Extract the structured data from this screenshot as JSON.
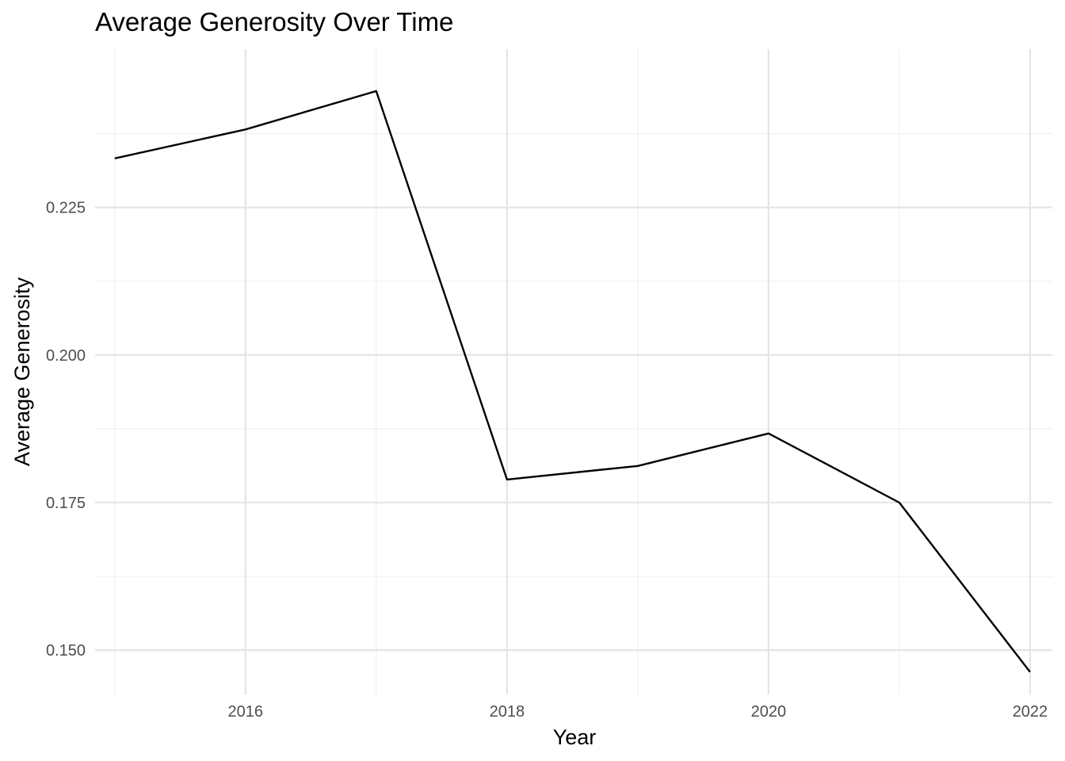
{
  "chart_data": {
    "type": "line",
    "title": "Average Generosity Over Time",
    "xlabel": "Year",
    "ylabel": "Average Generosity",
    "x": [
      2015,
      2016,
      2017,
      2018,
      2019,
      2020,
      2021,
      2022
    ],
    "series": [
      {
        "values": [
          0.2333,
          0.2382,
          0.2447,
          0.1789,
          0.1812,
          0.1867,
          0.175,
          0.1463
        ]
      }
    ],
    "xlim": [
      2014.85,
      2022.17
    ],
    "ylim": [
      0.1425,
      0.2518
    ],
    "x_ticks": [
      2016,
      2018,
      2020,
      2022
    ],
    "x_tick_labels": [
      "2016",
      "2018",
      "2020",
      "2022"
    ],
    "y_ticks": [
      0.15,
      0.175,
      0.2,
      0.225
    ],
    "y_tick_labels": [
      "0.150",
      "0.175",
      "0.200",
      "0.225"
    ],
    "x_minor_ticks": [
      2015,
      2017,
      2019,
      2021
    ],
    "y_minor_ticks": [
      0.1625,
      0.1875,
      0.2125,
      0.2375
    ],
    "grid": true,
    "legend": "none",
    "line_color": "#000000",
    "grid_color": "#e5e5e5"
  }
}
